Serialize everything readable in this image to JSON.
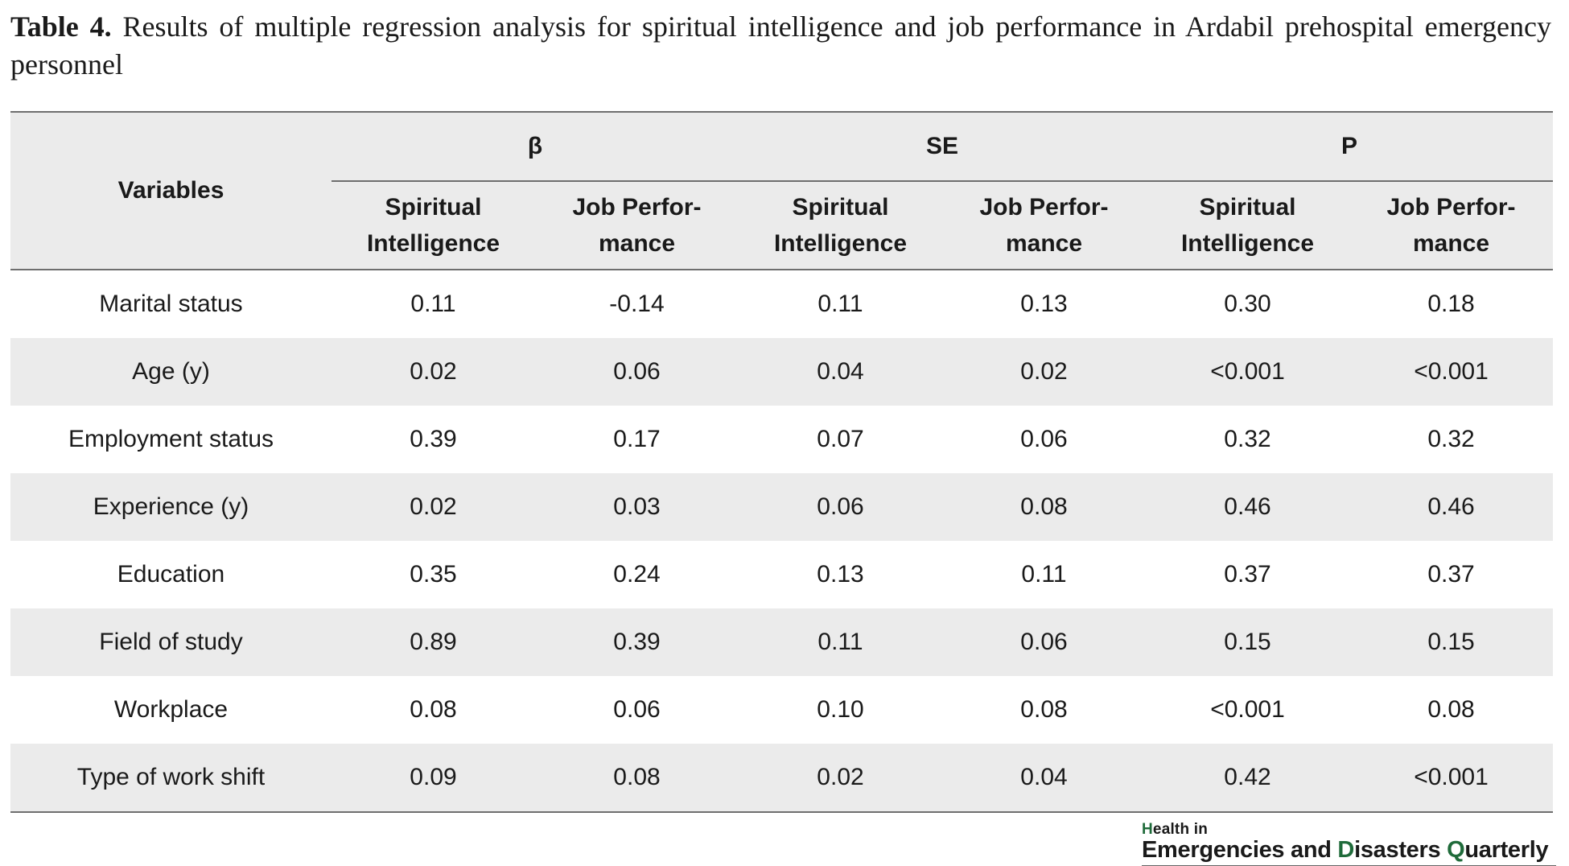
{
  "caption": {
    "label": "Table 4.",
    "text": " Results of multiple regression analysis for spiritual intelligence and job performance in Ardabil prehospital emergency personnel"
  },
  "table": {
    "variables_header": "Variables",
    "groups": [
      "β",
      "SE",
      "P"
    ],
    "subheaders": [
      [
        "Spiritual",
        "Intelligence"
      ],
      [
        "Job Perfor-",
        "mance"
      ],
      [
        "Spiritual",
        "Intelligence"
      ],
      [
        "Job Perfor-",
        "mance"
      ],
      [
        "Spiritual",
        "Intelligence"
      ],
      [
        "Job Perfor-",
        "mance"
      ]
    ],
    "rows": [
      {
        "variable": "Marital status",
        "values": [
          "0.11",
          "-0.14",
          "0.11",
          "0.13",
          "0.30",
          "0.18"
        ]
      },
      {
        "variable": "Age (y)",
        "values": [
          "0.02",
          "0.06",
          "0.04",
          "0.02",
          "<0.001",
          "<0.001"
        ]
      },
      {
        "variable": "Employment status",
        "values": [
          "0.39",
          "0.17",
          "0.07",
          "0.06",
          "0.32",
          "0.32"
        ]
      },
      {
        "variable": "Experience (y)",
        "values": [
          "0.02",
          "0.03",
          "0.06",
          "0.08",
          "0.46",
          "0.46"
        ]
      },
      {
        "variable": "Education",
        "values": [
          "0.35",
          "0.24",
          "0.13",
          "0.11",
          "0.37",
          "0.37"
        ]
      },
      {
        "variable": "Field of study",
        "values": [
          "0.89",
          "0.39",
          "0.11",
          "0.06",
          "0.15",
          "0.15"
        ]
      },
      {
        "variable": "Workplace",
        "values": [
          "0.08",
          "0.06",
          "0.10",
          "0.08",
          "<0.001",
          "0.08"
        ]
      },
      {
        "variable": "Type of work shift",
        "values": [
          "0.09",
          "0.08",
          "0.02",
          "0.04",
          "0.42",
          "<0.001"
        ]
      }
    ]
  },
  "journal": {
    "line1_mark": "H",
    "line1_rest": "ealth in",
    "line2": [
      "Emergencies and ",
      "D",
      "isasters ",
      "Q",
      "uarterly"
    ],
    "brand_color": "#1f6b3a"
  }
}
